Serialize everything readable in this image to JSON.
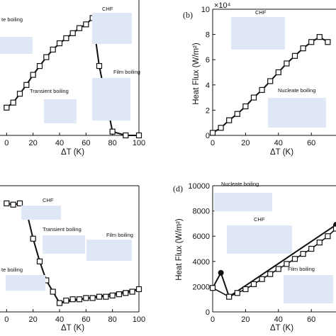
{
  "chart_data": [
    {
      "type": "line",
      "panel_label": "",
      "xlabel": "ΔT (K)",
      "ylabel": "",
      "xlim": [
        -5,
        100
      ],
      "ylim": [
        0,
        1
      ],
      "x_ticks": [
        "0",
        "20",
        "40",
        "60",
        "80",
        "100"
      ],
      "y_ticks": [],
      "annotations": [
        "te boiling",
        "CHF",
        "Transient boiling",
        "Film boiling"
      ],
      "series": [
        {
          "marker": "filled-circle",
          "x": [
            0,
            5,
            10,
            15,
            20,
            25,
            30,
            35,
            40,
            45,
            50,
            55,
            60,
            65,
            70,
            80,
            90,
            100
          ],
          "y": [
            0.22,
            0.26,
            0.33,
            0.4,
            0.48,
            0.55,
            0.62,
            0.68,
            0.73,
            0.77,
            0.81,
            0.85,
            0.88,
            0.93,
            0.55,
            0.03,
            0.0,
            0.0
          ]
        },
        {
          "marker": "open-square",
          "x": [
            0,
            5,
            10,
            15,
            20,
            25,
            30,
            35,
            40,
            45,
            50,
            55,
            60,
            65,
            70,
            80,
            90,
            100
          ],
          "y": [
            0.22,
            0.26,
            0.33,
            0.4,
            0.48,
            0.55,
            0.62,
            0.68,
            0.73,
            0.77,
            0.81,
            0.85,
            0.88,
            0.93,
            0.55,
            0.03,
            0.0,
            0.0
          ]
        }
      ]
    },
    {
      "type": "line",
      "panel_label": "(b)",
      "xlabel": "ΔT (K)",
      "ylabel": "Heat Flux (W/m²)",
      "y_multiplier": "×10⁴",
      "xlim": [
        0,
        75
      ],
      "ylim": [
        0,
        100000
      ],
      "x_ticks": [
        "0",
        "20",
        "40",
        "60"
      ],
      "y_ticks": [
        "0",
        "2",
        "4",
        "6",
        "8",
        "10"
      ],
      "annotations": [
        "CHF",
        "Nucleate boiling"
      ],
      "series": [
        {
          "marker": "filled-circle",
          "x": [
            0,
            5,
            10,
            15,
            20,
            25,
            30,
            35,
            40,
            45,
            50,
            55,
            60,
            65,
            70
          ],
          "y": [
            2000,
            6000,
            12000,
            17000,
            23000,
            30000,
            36000,
            43000,
            50000,
            57000,
            63000,
            69000,
            74000,
            78000,
            74000
          ]
        },
        {
          "marker": "open-square",
          "x": [
            0,
            5,
            10,
            15,
            20,
            25,
            30,
            35,
            40,
            45,
            50,
            55,
            60,
            65,
            70
          ],
          "y": [
            2000,
            6000,
            12000,
            17000,
            23000,
            30000,
            36000,
            43000,
            50000,
            57000,
            63000,
            69000,
            74000,
            78000,
            74000
          ]
        }
      ]
    },
    {
      "type": "line",
      "panel_label": "",
      "xlabel": "ΔT (K)",
      "ylabel": "",
      "xlim": [
        -5,
        100
      ],
      "ylim": [
        0,
        1
      ],
      "x_ticks": [
        "0",
        "20",
        "40",
        "60",
        "80",
        "100"
      ],
      "y_ticks": [],
      "annotations": [
        "CHF",
        "Transient boiling",
        "Film boiling",
        "te boiling"
      ],
      "series": [
        {
          "marker": "filled-circle",
          "x": [
            0,
            5,
            10,
            15,
            20,
            25,
            30,
            35,
            40,
            100
          ],
          "y": [
            0.86,
            0.85,
            0.86,
            0.8,
            0.58,
            0.4,
            0.25,
            0.16,
            0.07,
            0.18
          ]
        },
        {
          "marker": "open-square",
          "x": [
            0,
            5,
            10,
            15,
            20,
            25,
            30,
            35,
            40,
            45,
            50,
            55,
            60,
            65,
            70,
            75,
            80,
            85,
            90,
            95,
            100
          ],
          "y": [
            0.86,
            0.85,
            0.86,
            0.8,
            0.58,
            0.4,
            0.25,
            0.16,
            0.07,
            0.09,
            0.1,
            0.1,
            0.11,
            0.11,
            0.12,
            0.12,
            0.13,
            0.14,
            0.15,
            0.16,
            0.18
          ]
        }
      ]
    },
    {
      "type": "line",
      "panel_label": "(d)",
      "xlabel": "ΔT (K)",
      "ylabel": "Heat Flux (W/m²)",
      "xlim": [
        0,
        75
      ],
      "ylim": [
        0,
        10000
      ],
      "x_ticks": [
        "0",
        "20",
        "40",
        "60"
      ],
      "y_ticks": [
        "0",
        "2000",
        "4000",
        "6000",
        "8000",
        "10000"
      ],
      "annotations": [
        "Nucleate boiling",
        "CHF",
        "Film boiling"
      ],
      "series": [
        {
          "marker": "filled-circle",
          "x": [
            0,
            5,
            10,
            75
          ],
          "y": [
            1900,
            3100,
            1200,
            6900
          ]
        },
        {
          "marker": "open-square",
          "x": [
            0,
            10,
            15,
            20,
            25,
            30,
            35,
            40,
            45,
            50,
            55,
            60,
            65,
            70,
            75
          ],
          "y": [
            1900,
            1200,
            1500,
            1800,
            2200,
            2600,
            3000,
            3400,
            3800,
            4200,
            4600,
            5000,
            5500,
            6000,
            6600
          ]
        }
      ]
    }
  ]
}
